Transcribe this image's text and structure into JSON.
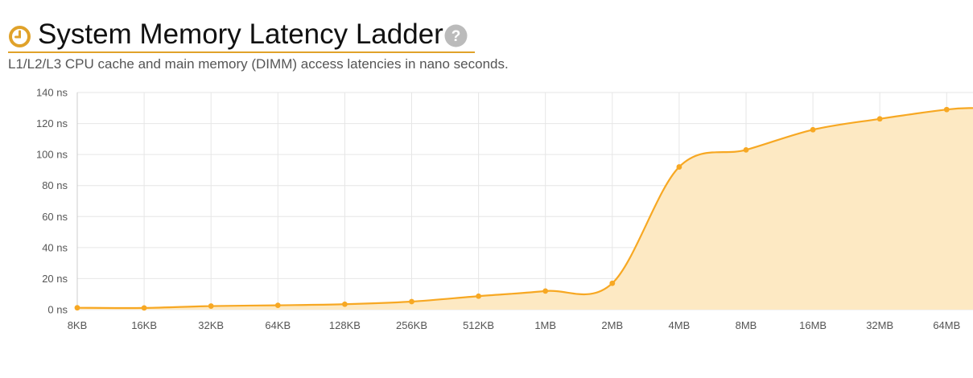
{
  "header": {
    "title": "System Memory Latency Ladder",
    "subtitle": "L1/L2/L3 CPU cache and main memory (DIMM) access latencies in nano seconds.",
    "icon": "clock-icon",
    "help_icon": "question-icon"
  },
  "colors": {
    "accent": "#e0a22a",
    "line": "#f7a823",
    "area": "#fde9c3",
    "grid": "#e6e6e6",
    "help": "#bbbbbb"
  },
  "chart_data": {
    "type": "area",
    "title": "",
    "xlabel": "",
    "ylabel": "",
    "categories": [
      "8KB",
      "16KB",
      "32KB",
      "64KB",
      "128KB",
      "256KB",
      "512KB",
      "1MB",
      "2MB",
      "4MB",
      "8MB",
      "16MB",
      "32MB",
      "64MB"
    ],
    "values": [
      1.2,
      1.1,
      2.3,
      2.8,
      3.5,
      5.2,
      8.7,
      12.0,
      17.0,
      92.0,
      103.0,
      116.0,
      123.0,
      129.0
    ],
    "ylim": [
      0,
      140
    ],
    "yticks": [
      "0 ns",
      "20 ns",
      "40 ns",
      "60 ns",
      "80 ns",
      "100 ns",
      "120 ns",
      "140 ns"
    ],
    "grid": true,
    "legend": "none"
  }
}
